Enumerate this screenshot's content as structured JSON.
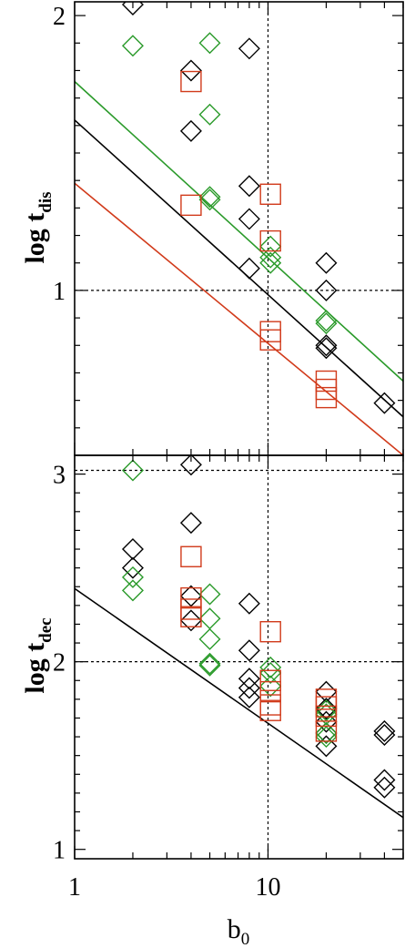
{
  "colors": {
    "black": "#000000",
    "green": "#2a9a2a",
    "red": "#d13a1a"
  },
  "chart_data": [
    {
      "type": "scatter",
      "title": "",
      "xscale": "log",
      "xlim": [
        1,
        50
      ],
      "ylim": [
        0.4,
        2.05
      ],
      "ylabel_main": "log t",
      "ylabel_sub": "dis",
      "xlabel": "",
      "yticks": [
        1,
        2
      ],
      "ytick_labels": [
        "1",
        "2"
      ],
      "xticks": [],
      "xtick_labels": [],
      "reference_lines": {
        "x": 10,
        "y": 1,
        "style": "dotted"
      },
      "series": [
        {
          "marker": "diamond",
          "color": "black",
          "points": [
            [
              2,
              2.04
            ],
            [
              4,
              1.8
            ],
            [
              4,
              1.58
            ],
            [
              8,
              1.88
            ],
            [
              8,
              1.38
            ],
            [
              8,
              1.26
            ],
            [
              8,
              1.08
            ],
            [
              20,
              1.1
            ],
            [
              20,
              1.0
            ],
            [
              20,
              0.8
            ],
            [
              20,
              0.79
            ],
            [
              40,
              0.59
            ]
          ]
        },
        {
          "marker": "diamond",
          "color": "green",
          "points": [
            [
              2,
              1.89
            ],
            [
              5,
              1.9
            ],
            [
              5,
              1.64
            ],
            [
              5,
              1.34
            ],
            [
              5,
              1.33
            ],
            [
              10.3,
              1.16
            ],
            [
              10.3,
              1.12
            ],
            [
              10.3,
              1.1
            ],
            [
              20,
              0.89
            ],
            [
              20,
              0.88
            ]
          ]
        },
        {
          "marker": "square",
          "color": "red",
          "points": [
            [
              4,
              1.76
            ],
            [
              4,
              1.31
            ],
            [
              10.3,
              1.35
            ],
            [
              10.3,
              1.18
            ],
            [
              10.3,
              0.85
            ],
            [
              10.3,
              0.82
            ],
            [
              20,
              0.67
            ],
            [
              20,
              0.64
            ],
            [
              20,
              0.61
            ]
          ]
        }
      ],
      "lines": [
        {
          "color": "green",
          "from": [
            1,
            1.76
          ],
          "to": [
            50,
            0.67
          ]
        },
        {
          "color": "black",
          "from": [
            1,
            1.62
          ],
          "to": [
            50,
            0.54
          ]
        },
        {
          "color": "red",
          "from": [
            1,
            1.39
          ],
          "to": [
            50,
            0.4
          ]
        }
      ]
    },
    {
      "type": "scatter",
      "title": "",
      "xscale": "log",
      "xlim": [
        1,
        50
      ],
      "ylim": [
        0.95,
        3.1
      ],
      "ylabel_main": "log t",
      "ylabel_sub": "dec",
      "xlabel": "b0",
      "yticks": [
        1,
        2,
        3
      ],
      "ytick_labels": [
        "1",
        "2",
        "3"
      ],
      "xticks": [
        1,
        10
      ],
      "xtick_labels": [
        "1",
        "10"
      ],
      "reference_lines": {
        "x": 10,
        "y": [
          2,
          3.02
        ],
        "style": "dotted"
      },
      "series": [
        {
          "marker": "diamond",
          "color": "black",
          "points": [
            [
              2,
              2.6
            ],
            [
              2,
              2.5
            ],
            [
              4,
              3.05
            ],
            [
              4,
              2.74
            ],
            [
              4,
              2.35
            ],
            [
              4,
              2.22
            ],
            [
              8,
              2.31
            ],
            [
              8,
              2.06
            ],
            [
              8,
              1.91
            ],
            [
              8,
              1.86
            ],
            [
              8,
              1.81
            ],
            [
              20,
              1.84
            ],
            [
              20,
              1.75
            ],
            [
              20,
              1.68
            ],
            [
              20,
              1.62
            ],
            [
              20,
              1.55
            ],
            [
              40,
              1.63
            ],
            [
              40,
              1.61
            ],
            [
              40,
              1.37
            ],
            [
              40,
              1.33
            ]
          ]
        },
        {
          "marker": "diamond",
          "color": "green",
          "points": [
            [
              2,
              3.02
            ],
            [
              2,
              2.45
            ],
            [
              2,
              2.38
            ],
            [
              5,
              2.36
            ],
            [
              5,
              2.23
            ],
            [
              5,
              2.12
            ],
            [
              5,
              1.99
            ],
            [
              5,
              1.98
            ],
            [
              10.3,
              1.97
            ],
            [
              10.3,
              1.94
            ],
            [
              10.3,
              1.87
            ],
            [
              20,
              1.74
            ],
            [
              20,
              1.72
            ],
            [
              20,
              1.62
            ],
            [
              20,
              1.6
            ]
          ]
        },
        {
          "marker": "square",
          "color": "red",
          "points": [
            [
              4,
              2.56
            ],
            [
              4,
              2.34
            ],
            [
              4,
              2.28
            ],
            [
              4,
              2.24
            ],
            [
              10.3,
              2.16
            ],
            [
              10.3,
              1.9
            ],
            [
              10.3,
              1.84
            ],
            [
              10.3,
              1.77
            ],
            [
              10.3,
              1.74
            ],
            [
              20,
              1.8
            ],
            [
              20,
              1.76
            ],
            [
              20,
              1.71
            ],
            [
              20,
              1.63
            ]
          ]
        }
      ],
      "lines": [
        {
          "color": "black",
          "from": [
            1,
            2.39
          ],
          "to": [
            50,
            1.17
          ]
        }
      ]
    }
  ]
}
